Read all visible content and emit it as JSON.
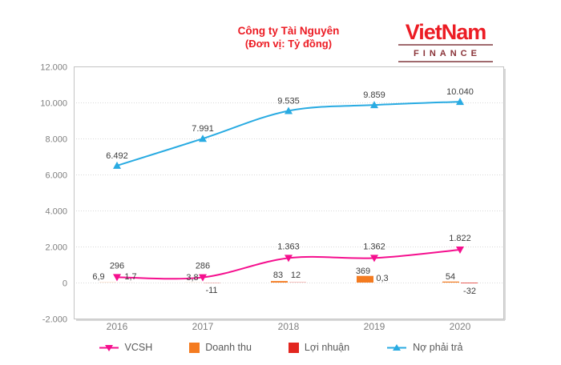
{
  "title": {
    "line1": "Công ty Tài Nguyên",
    "line2": "(Đơn vị: Tỷ đồng)",
    "color": "#ec1c24"
  },
  "logo": {
    "line1": "VietNam",
    "line2": "FINANCE",
    "name_color": "#ec1c24",
    "finance_color": "#8a3338"
  },
  "chart_data": {
    "type": "combo",
    "categories": [
      "2016",
      "2017",
      "2018",
      "2019",
      "2020"
    ],
    "series": [
      {
        "name": "VCSH",
        "type": "line",
        "marker": "triangle-down",
        "color": "#f50f8e",
        "values": [
          296,
          286,
          1363,
          1362,
          1822
        ],
        "labels": [
          "296",
          "286",
          "1.363",
          "1.362",
          "1.822"
        ]
      },
      {
        "name": "Doanh thu",
        "type": "bar",
        "color": "#f47b20",
        "values": [
          6.9,
          3.8,
          83,
          369,
          54
        ],
        "labels": [
          "6,9",
          "3,8",
          "83",
          "369",
          "54"
        ]
      },
      {
        "name": "Lợi nhuận",
        "type": "bar",
        "color": "#e2261f",
        "values": [
          1.7,
          -11,
          12,
          0.3,
          -32
        ],
        "labels": [
          "1,7",
          "-11",
          "12",
          "0,3",
          "-32"
        ]
      },
      {
        "name": "Nợ phải trả",
        "type": "line",
        "marker": "triangle-up",
        "color": "#29abe2",
        "values": [
          6492,
          7991,
          9535,
          9859,
          10040
        ],
        "labels": [
          "6.492",
          "7.991",
          "9.535",
          "9.859",
          "10.040"
        ]
      }
    ],
    "y_axis": {
      "min": -2000,
      "max": 12000,
      "tick_interval": 2000,
      "tick_labels": [
        "12.000",
        "10.000",
        "8.000",
        "6.000",
        "4.000",
        "2.000",
        "0",
        "-2.000"
      ]
    },
    "x_axis_label_color": "#7f7f7f",
    "y_axis_label_color": "#7f7f7f",
    "data_label_color": "#3d3d3d",
    "grid": true,
    "grid_color": "#d9d9d9",
    "plot_border_color": "#c4c4c4",
    "legend_position": "bottom"
  }
}
